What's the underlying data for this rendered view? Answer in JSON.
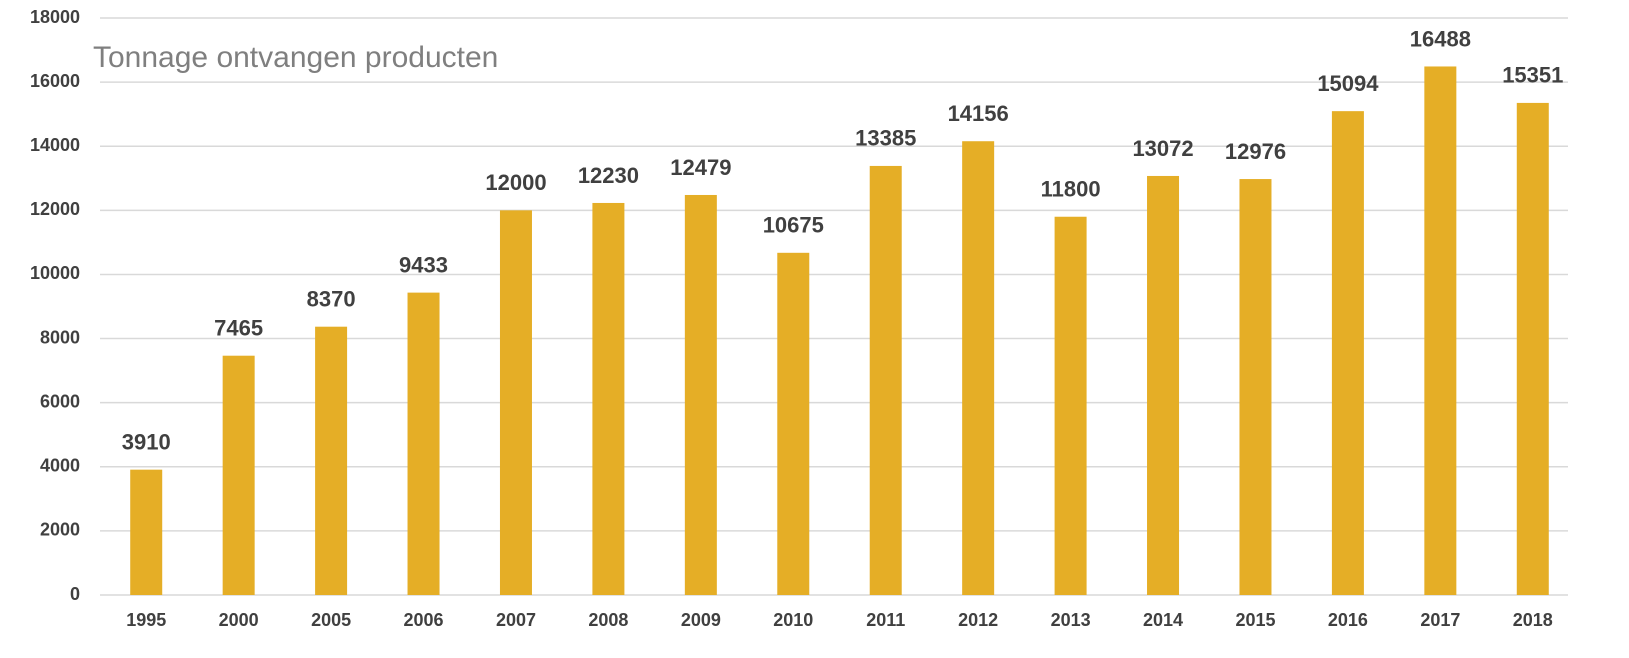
{
  "chart_data": {
    "type": "bar",
    "title": "Tonnage ontvangen producten",
    "categories": [
      "1995",
      "2000",
      "2005",
      "2006",
      "2007",
      "2008",
      "2009",
      "2010",
      "2011",
      "2012",
      "2013",
      "2014",
      "2015",
      "2016",
      "2017",
      "2018"
    ],
    "values": [
      3910,
      7465,
      8370,
      9433,
      12000,
      12230,
      12479,
      10675,
      13385,
      14156,
      11800,
      13072,
      12976,
      15094,
      16488,
      15351
    ],
    "color": "#e5ae26",
    "ylim": [
      0,
      18000
    ],
    "yticks": [
      0,
      2000,
      4000,
      6000,
      8000,
      10000,
      12000,
      14000,
      16000,
      18000
    ],
    "grid": true
  }
}
